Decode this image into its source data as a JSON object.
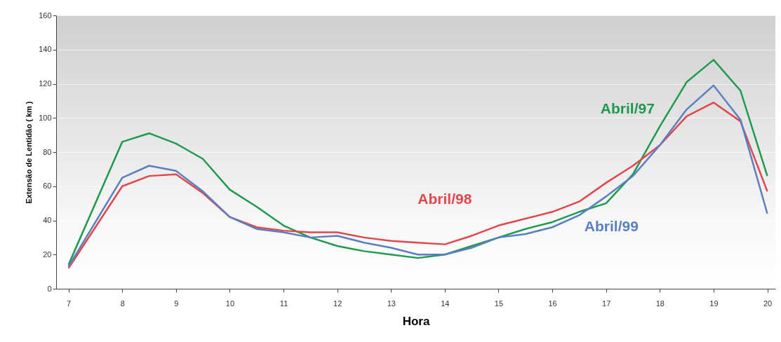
{
  "chart_data": {
    "type": "line",
    "xlabel": "Hora",
    "ylabel": "Extensão de Lentidão ( km )",
    "x": [
      7,
      8,
      8.5,
      9,
      9.5,
      10,
      10.5,
      11,
      11.5,
      12,
      12.5,
      13,
      13.5,
      14,
      14.5,
      15,
      15.5,
      16,
      16.5,
      17,
      17.5,
      18,
      18.5,
      19,
      19.5,
      20
    ],
    "series": [
      {
        "name": "Abril/97",
        "color": "#1e9a4f",
        "values": [
          14,
          86,
          91,
          85,
          76,
          58,
          48,
          37,
          30,
          25,
          22,
          20,
          18,
          20,
          25,
          30,
          35,
          39,
          45,
          50,
          67,
          95,
          121,
          134,
          116,
          66
        ]
      },
      {
        "name": "Abril/98",
        "color": "#e0474c",
        "values": [
          12,
          60,
          66,
          67,
          56,
          42,
          36,
          34,
          33,
          33,
          30,
          28,
          27,
          26,
          31,
          37,
          41,
          45,
          51,
          62,
          72,
          84,
          101,
          109,
          98,
          57
        ]
      },
      {
        "name": "Abril/99",
        "color": "#5a7fc0",
        "values": [
          13,
          65,
          72,
          69,
          57,
          42,
          35,
          33,
          30,
          31,
          27,
          24,
          20,
          20,
          24,
          30,
          32,
          36,
          43,
          54,
          66,
          84,
          105,
          119,
          99,
          44
        ]
      }
    ],
    "xlim": [
      6.77,
      20.15
    ],
    "xticks": [
      7,
      8,
      9,
      10,
      11,
      12,
      13,
      14,
      15,
      16,
      17,
      18,
      19,
      20
    ],
    "ylim": [
      0,
      160
    ],
    "yticks": [
      0,
      20,
      40,
      60,
      80,
      100,
      120,
      140,
      160
    ],
    "grid": "y",
    "marker": "none",
    "line_style": "solid"
  }
}
